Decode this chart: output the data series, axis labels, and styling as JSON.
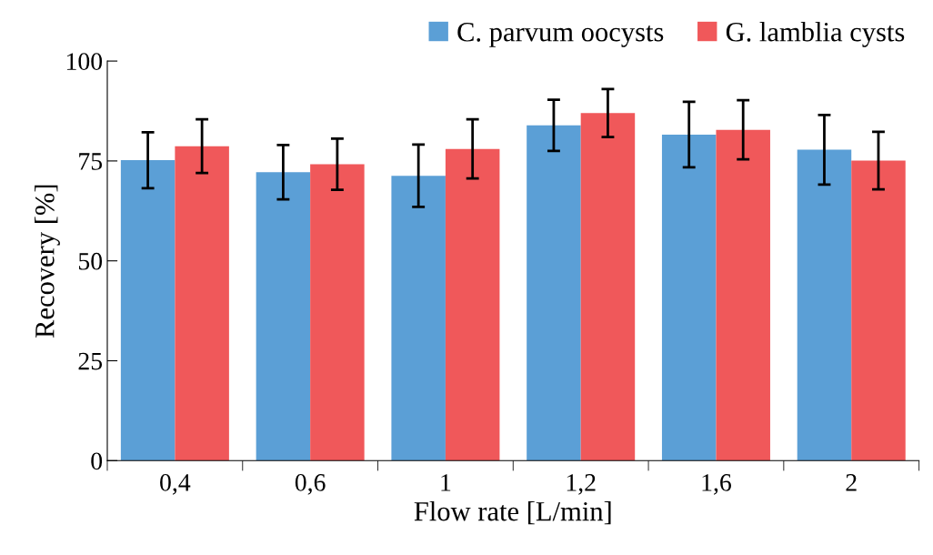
{
  "chart_data": {
    "type": "bar",
    "xlabel": "Flow rate [L/min]",
    "ylabel": "Recovery [%]",
    "categories": [
      "0,4",
      "0,6",
      "1",
      "1,2",
      "1,6",
      "2"
    ],
    "series": [
      {
        "name": "C. parvum oocysts",
        "color": "#5b9fd6",
        "values": [
          75.2,
          72.2,
          71.3,
          83.9,
          81.6,
          77.8
        ],
        "errors": [
          7.0,
          6.8,
          7.8,
          6.4,
          8.2,
          8.7
        ]
      },
      {
        "name": "G. lamblia cysts",
        "color": "#f0585a",
        "values": [
          78.7,
          74.2,
          78.0,
          87.0,
          82.8,
          75.1
        ],
        "errors": [
          6.7,
          6.4,
          7.4,
          6.0,
          7.4,
          7.2
        ]
      }
    ],
    "ylim": [
      0,
      100
    ],
    "yticks": [
      0,
      25,
      50,
      75,
      100
    ],
    "grid": false,
    "legend": "top right"
  }
}
